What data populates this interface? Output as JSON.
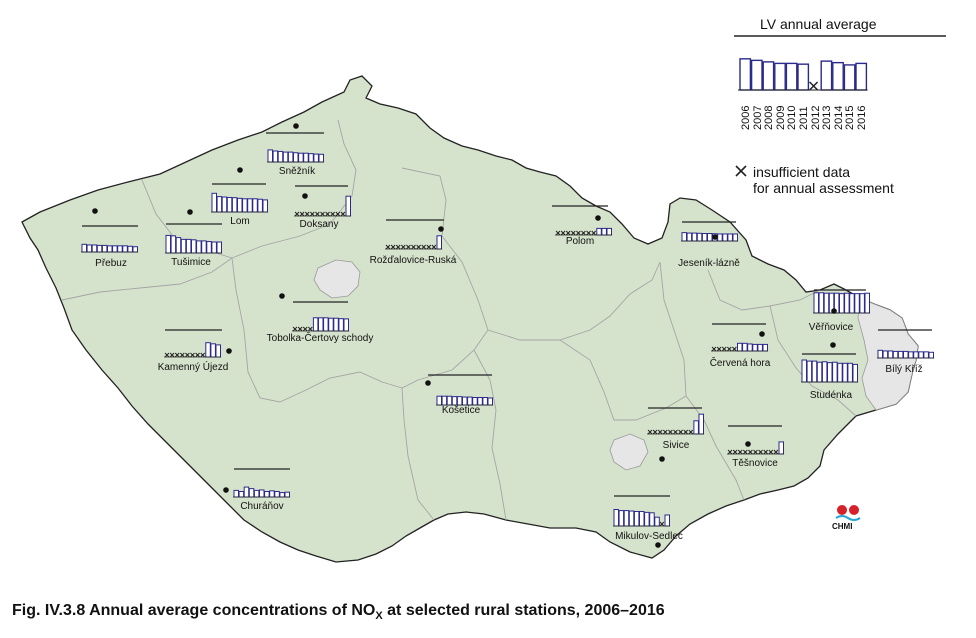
{
  "legend": {
    "title": "LV annual average",
    "years": [
      "2006",
      "2007",
      "2008",
      "2009",
      "2010",
      "2011",
      "2012",
      "2013",
      "2014",
      "2015",
      "2016"
    ],
    "example_values": [
      0.82,
      0.78,
      0.74,
      0.7,
      0.7,
      0.68,
      0,
      0.76,
      0.72,
      0.66,
      0.7
    ],
    "note_line1": "insufficient data",
    "note_line2": "for annual assessment"
  },
  "caption": {
    "prefix": "Fig. IV.3.8  Annual average concentrations of NO",
    "subscript": "X",
    "suffix": " at selected rural stations, 2006–2016"
  },
  "logo_text": "CHMI",
  "colors": {
    "country_fill": "#d6e3cc",
    "region_fill": "#e6e6e6",
    "bar_stroke": "#2b2a8a",
    "border": "#222222",
    "region_lines": "#a5a5a5"
  },
  "stations": [
    {
      "name": "Sněžník",
      "values": [
        0.55,
        0.5,
        0.48,
        0.45,
        0.45,
        0.42,
        0.4,
        0.4,
        0.38,
        0.36,
        0.35
      ],
      "missing": []
    },
    {
      "name": "Lom",
      "values": [
        0.85,
        0.7,
        0.68,
        0.66,
        0.65,
        0.62,
        0.6,
        0.6,
        0.6,
        0.58,
        0.55
      ],
      "missing": []
    },
    {
      "name": "Doksany",
      "values": [
        0,
        0,
        0,
        0,
        0,
        0,
        0,
        0,
        0,
        0,
        0.9
      ],
      "missing": [
        0,
        1,
        2,
        3,
        4,
        5,
        6,
        7,
        8,
        9
      ]
    },
    {
      "name": "Přebuz",
      "values": [
        0.35,
        0.32,
        0.32,
        0.3,
        0.3,
        0.28,
        0.28,
        0.28,
        0.28,
        0.26,
        0.24
      ],
      "missing": []
    },
    {
      "name": "Tušimice",
      "values": [
        0.8,
        0.78,
        0.7,
        0.62,
        0.62,
        0.6,
        0.55,
        0.55,
        0.52,
        0.5,
        0.5
      ],
      "missing": []
    },
    {
      "name": "Rožďalovice-Ruská",
      "values": [
        0,
        0,
        0,
        0,
        0,
        0,
        0,
        0,
        0,
        0,
        0.6
      ],
      "missing": [
        0,
        1,
        2,
        3,
        4,
        5,
        6,
        7,
        8,
        9
      ]
    },
    {
      "name": "Polom",
      "values": [
        0,
        0,
        0,
        0,
        0,
        0,
        0,
        0,
        0.3,
        0.3,
        0.3
      ],
      "missing": [
        0,
        1,
        2,
        3,
        4,
        5,
        6,
        7
      ]
    },
    {
      "name": "Jeseník-lázně",
      "values": [
        0.38,
        0.36,
        0.36,
        0.35,
        0.34,
        0.34,
        0.33,
        0.32,
        0.32,
        0.32,
        0.32
      ],
      "missing": []
    },
    {
      "name": "Věřňovice",
      "values": [
        0.92,
        0.92,
        0.9,
        0.9,
        0.9,
        0.88,
        0.9,
        0.88,
        0.88,
        0.88,
        0.9
      ],
      "missing": []
    },
    {
      "name": "Tobolka-Čertovy schody",
      "values": [
        0,
        0,
        0,
        0,
        0.6,
        0.6,
        0.6,
        0.58,
        0.58,
        0.56,
        0.55
      ],
      "missing": [
        0,
        1,
        2,
        3
      ]
    },
    {
      "name": "Kamenný Újezd",
      "values": [
        0,
        0,
        0,
        0,
        0,
        0,
        0,
        0,
        0.65,
        0.6,
        0.55
      ],
      "missing": [
        0,
        1,
        2,
        3,
        4,
        5,
        6,
        7
      ]
    },
    {
      "name": "Červená hora",
      "values": [
        0,
        0,
        0,
        0,
        0,
        0.35,
        0.35,
        0.32,
        0.3,
        0.3,
        0.3
      ],
      "missing": [
        0,
        1,
        2,
        3,
        4
      ]
    },
    {
      "name": "Studénka",
      "values": [
        1.0,
        0.95,
        0.95,
        0.9,
        0.92,
        0.88,
        0.9,
        0.85,
        0.85,
        0.85,
        0.8
      ],
      "missing": []
    },
    {
      "name": "Bílý Kříž",
      "values": [
        0.35,
        0.32,
        0.32,
        0.3,
        0.3,
        0.3,
        0.28,
        0.28,
        0.28,
        0.28,
        0.26
      ],
      "missing": []
    },
    {
      "name": "Košetice",
      "values": [
        0.4,
        0.4,
        0.4,
        0.38,
        0.38,
        0.36,
        0.36,
        0.34,
        0.34,
        0.34,
        0.32
      ],
      "missing": []
    },
    {
      "name": "Sivice",
      "values": [
        0,
        0,
        0,
        0,
        0,
        0,
        0,
        0,
        0,
        0.6,
        0.9
      ],
      "missing": [
        0,
        1,
        2,
        3,
        4,
        5,
        6,
        7,
        8
      ]
    },
    {
      "name": "Těšnovice",
      "values": [
        0,
        0,
        0,
        0,
        0,
        0,
        0,
        0,
        0,
        0,
        0.55
      ],
      "missing": [
        0,
        1,
        2,
        3,
        4,
        5,
        6,
        7,
        8,
        9
      ]
    },
    {
      "name": "Churáňov",
      "values": [
        0.3,
        0.25,
        0.45,
        0.38,
        0.3,
        0.32,
        0.25,
        0.28,
        0.25,
        0.2,
        0.22
      ],
      "missing": []
    },
    {
      "name": "Mikulov-Sedlec",
      "values": [
        0.75,
        0.7,
        0.7,
        0.68,
        0.66,
        0.66,
        0.62,
        0.6,
        0.4,
        0,
        0.5
      ],
      "missing": [
        9
      ]
    }
  ]
}
